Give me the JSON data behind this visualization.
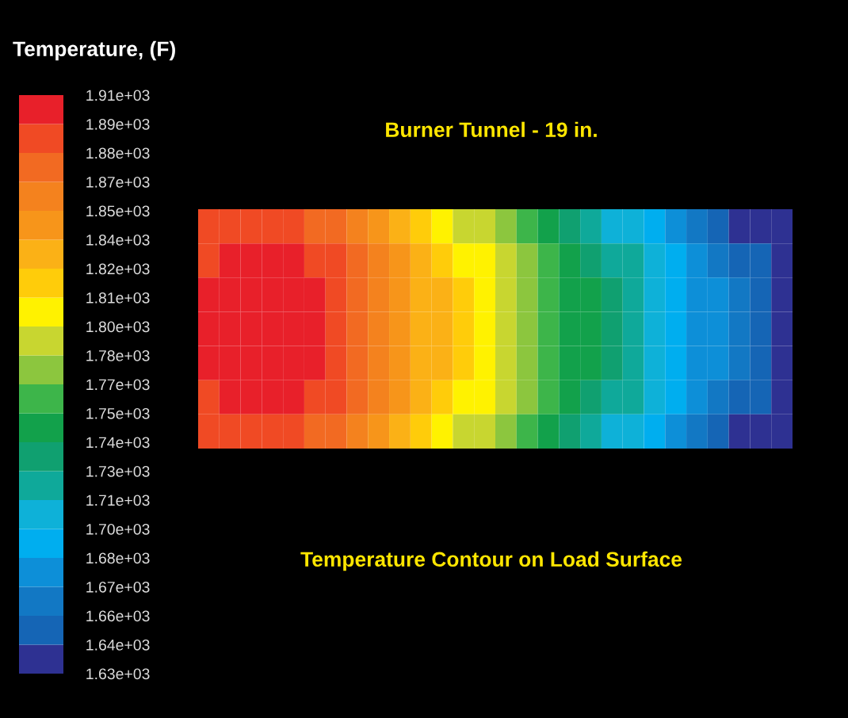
{
  "chart_data": {
    "type": "heatmap",
    "title": "Burner Tunnel - 19 in.",
    "clabel": "Temperature, (F)",
    "annotations": [
      "Temperature Contour on Load Surface"
    ],
    "categories": [
      null,
      null,
      null,
      null,
      null,
      null,
      null,
      null,
      null,
      null,
      null,
      null,
      null,
      null,
      null,
      null,
      null,
      null,
      null,
      null,
      null,
      null,
      null,
      null,
      null,
      null,
      null,
      null
    ],
    "y_categories": [
      null,
      null,
      null,
      null,
      null,
      null,
      null
    ],
    "cells": [
      [
        1885,
        1885,
        1885,
        1885,
        1885,
        1875,
        1875,
        1860,
        1845,
        1830,
        1815,
        1805,
        1790,
        1790,
        1775,
        1760,
        1745,
        1735,
        1720,
        1705,
        1705,
        1690,
        1675,
        1665,
        1650,
        1635,
        1635,
        1635
      ],
      [
        1885,
        1900,
        1900,
        1900,
        1900,
        1885,
        1885,
        1875,
        1860,
        1845,
        1830,
        1815,
        1805,
        1805,
        1790,
        1775,
        1760,
        1745,
        1735,
        1720,
        1720,
        1705,
        1690,
        1675,
        1665,
        1650,
        1650,
        1635
      ],
      [
        1900,
        1900,
        1900,
        1900,
        1900,
        1900,
        1885,
        1875,
        1860,
        1845,
        1830,
        1830,
        1815,
        1805,
        1790,
        1775,
        1760,
        1745,
        1745,
        1735,
        1720,
        1705,
        1690,
        1675,
        1675,
        1665,
        1650,
        1635
      ],
      [
        1900,
        1900,
        1900,
        1900,
        1900,
        1900,
        1885,
        1875,
        1860,
        1845,
        1830,
        1830,
        1815,
        1805,
        1790,
        1775,
        1760,
        1745,
        1745,
        1735,
        1720,
        1705,
        1690,
        1675,
        1675,
        1665,
        1650,
        1635
      ],
      [
        1900,
        1900,
        1900,
        1900,
        1900,
        1900,
        1885,
        1875,
        1860,
        1845,
        1830,
        1830,
        1815,
        1805,
        1790,
        1775,
        1760,
        1745,
        1745,
        1735,
        1720,
        1705,
        1690,
        1675,
        1675,
        1665,
        1650,
        1635
      ],
      [
        1885,
        1900,
        1900,
        1900,
        1900,
        1885,
        1885,
        1875,
        1860,
        1845,
        1830,
        1815,
        1805,
        1805,
        1790,
        1775,
        1760,
        1745,
        1735,
        1720,
        1720,
        1705,
        1690,
        1675,
        1665,
        1650,
        1650,
        1635
      ],
      [
        1885,
        1885,
        1885,
        1885,
        1885,
        1875,
        1875,
        1860,
        1845,
        1830,
        1815,
        1805,
        1790,
        1790,
        1775,
        1760,
        1745,
        1735,
        1720,
        1705,
        1705,
        1690,
        1675,
        1665,
        1650,
        1635,
        1635,
        1635
      ]
    ],
    "cticks": [
      {
        "value": 1630,
        "label": "1.63e+03"
      },
      {
        "value": 1640,
        "label": "1.64e+03"
      },
      {
        "value": 1660,
        "label": "1.66e+03"
      },
      {
        "value": 1670,
        "label": "1.67e+03"
      },
      {
        "value": 1680,
        "label": "1.68e+03"
      },
      {
        "value": 1700,
        "label": "1.70e+03"
      },
      {
        "value": 1710,
        "label": "1.71e+03"
      },
      {
        "value": 1730,
        "label": "1.73e+03"
      },
      {
        "value": 1740,
        "label": "1.74e+03"
      },
      {
        "value": 1750,
        "label": "1.75e+03"
      },
      {
        "value": 1770,
        "label": "1.77e+03"
      },
      {
        "value": 1780,
        "label": "1.78e+03"
      },
      {
        "value": 1800,
        "label": "1.80e+03"
      },
      {
        "value": 1810,
        "label": "1.81e+03"
      },
      {
        "value": 1820,
        "label": "1.82e+03"
      },
      {
        "value": 1840,
        "label": "1.84e+03"
      },
      {
        "value": 1850,
        "label": "1.85e+03"
      },
      {
        "value": 1870,
        "label": "1.87e+03"
      },
      {
        "value": 1880,
        "label": "1.88e+03"
      },
      {
        "value": 1890,
        "label": "1.89e+03"
      },
      {
        "value": 1910,
        "label": "1.91e+03"
      }
    ]
  }
}
